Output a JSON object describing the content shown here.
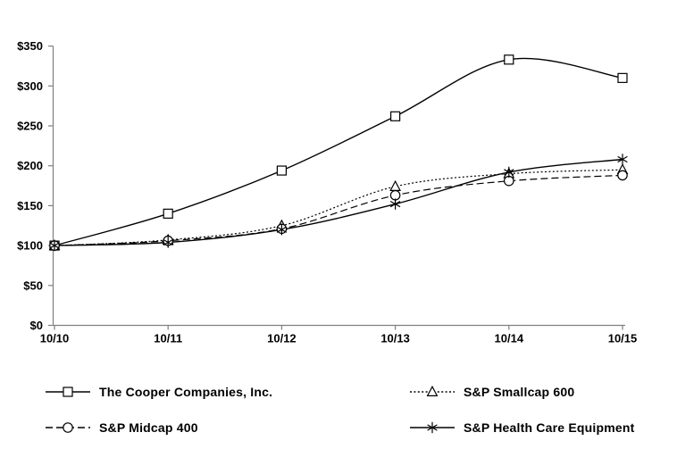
{
  "chart_data": {
    "type": "line",
    "title": "",
    "x_categories": [
      "10/10",
      "10/11",
      "10/12",
      "10/13",
      "10/14",
      "10/15"
    ],
    "y_ticks": [
      "$0",
      "$50",
      "$100",
      "$150",
      "$200",
      "$250",
      "$300",
      "$350"
    ],
    "ylim": [
      0,
      350
    ],
    "y_tick_step": 50,
    "grid": false,
    "legend_position": "bottom-two-columns",
    "axis_color": "#808080",
    "series_color": "#000000",
    "series": [
      {
        "id": "cooper",
        "name": "The Cooper Companies, Inc.",
        "marker": "square",
        "line": "solid",
        "values": [
          100,
          140,
          194,
          262,
          333,
          310
        ]
      },
      {
        "id": "sp-smallcap-600",
        "name": "S&P Smallcap 600",
        "marker": "triangle",
        "line": "dotted",
        "values": [
          100,
          107,
          125,
          174,
          190,
          195
        ]
      },
      {
        "id": "sp-midcap-400",
        "name": "S&P Midcap 400",
        "marker": "circle",
        "line": "dashed",
        "values": [
          100,
          106,
          121,
          163,
          181,
          188
        ]
      },
      {
        "id": "sp-health-care-equipment",
        "name": "S&P Health Care Equipment",
        "marker": "asterisk",
        "line": "solid",
        "values": [
          100,
          104,
          120,
          152,
          192,
          208
        ]
      }
    ]
  }
}
